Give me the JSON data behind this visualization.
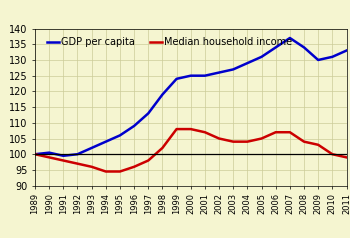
{
  "years": [
    1989,
    1990,
    1991,
    1992,
    1993,
    1994,
    1995,
    1996,
    1997,
    1998,
    1999,
    2000,
    2001,
    2002,
    2003,
    2004,
    2005,
    2006,
    2007,
    2008,
    2009,
    2010,
    2011
  ],
  "gdp_per_capita": [
    100,
    100.5,
    99.5,
    100,
    102,
    104,
    106,
    109,
    113,
    119,
    124,
    125,
    125,
    126,
    127,
    129,
    131,
    134,
    137,
    134,
    130,
    131,
    133
  ],
  "median_income": [
    100,
    99,
    98,
    97,
    96,
    94.5,
    94.5,
    96,
    98,
    102,
    108,
    108,
    107,
    105,
    104,
    104,
    105,
    107,
    107,
    104,
    103,
    100,
    99
  ],
  "gdp_color": "#0000cc",
  "income_color": "#cc0000",
  "hline_color": "#000000",
  "bg_color": "#f5f5d0",
  "grid_color": "#cccc99",
  "ylim": [
    90,
    140
  ],
  "yticks": [
    90,
    95,
    100,
    105,
    110,
    115,
    120,
    125,
    130,
    135,
    140
  ],
  "xlabel_fontsize": 6.0,
  "ylabel_fontsize": 7.0,
  "legend_fontsize": 7.0,
  "line_width": 1.8
}
